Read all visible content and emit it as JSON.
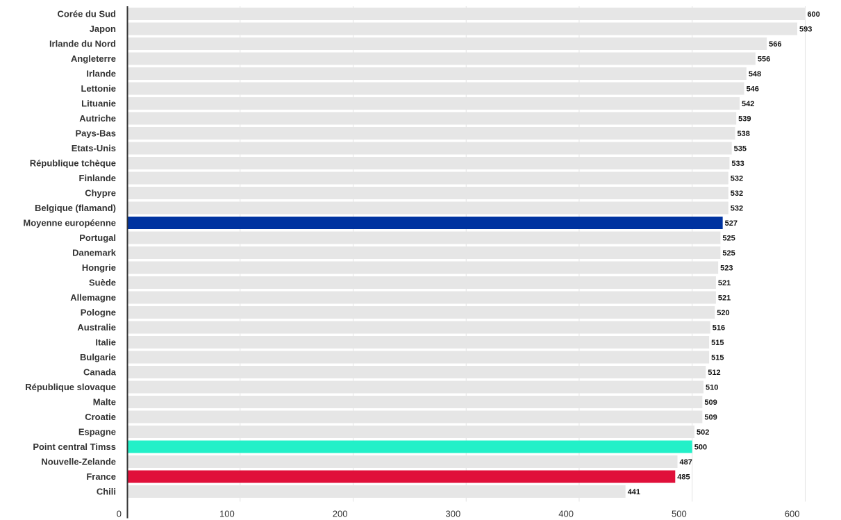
{
  "chart_data": {
    "type": "bar",
    "orientation": "horizontal",
    "categories": [
      "Corée du Sud",
      "Japon",
      "Irlande du Nord",
      "Angleterre",
      "Irlande",
      "Lettonie",
      "Lituanie",
      "Autriche",
      "Pays-Bas",
      "Etats-Unis",
      "République tchèque",
      "Finlande",
      "Chypre",
      "Belgique (flamand)",
      "Moyenne européenne",
      "Portugal",
      "Danemark",
      "Hongrie",
      "Suède",
      "Allemagne",
      "Pologne",
      "Australie",
      "Italie",
      "Bulgarie",
      "Canada",
      "République slovaque",
      "Malte",
      "Croatie",
      "Espagne",
      "Point central Timss",
      "Nouvelle-Zelande",
      "France",
      "Chili"
    ],
    "values": [
      600,
      593,
      566,
      556,
      548,
      546,
      542,
      539,
      538,
      535,
      533,
      532,
      532,
      532,
      527,
      525,
      525,
      523,
      521,
      521,
      520,
      516,
      515,
      515,
      512,
      510,
      509,
      509,
      502,
      500,
      487,
      485,
      441
    ],
    "xlim": [
      0,
      620
    ],
    "xticks": [
      0,
      100,
      200,
      300,
      400,
      500,
      600
    ],
    "grid": true,
    "default_color": "#e6e6e6",
    "highlights": {
      "Moyenne européenne": "#0033a0",
      "Point central Timss": "#22f0c8",
      "France": "#e0103a"
    },
    "gridline_color": "#e3e3e3",
    "axis_color": "#333333"
  }
}
